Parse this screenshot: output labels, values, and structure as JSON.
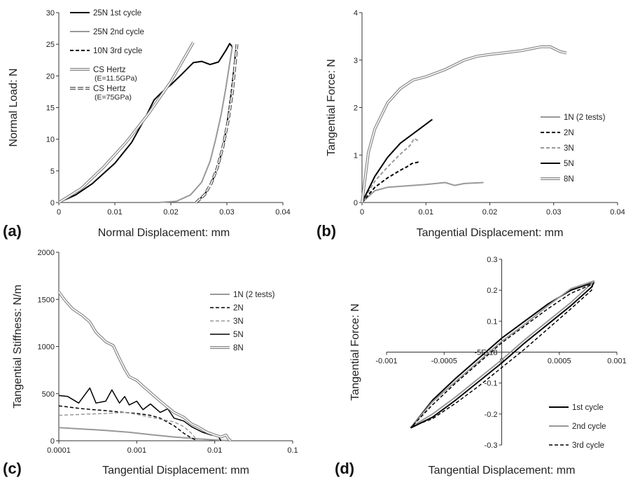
{
  "panels": [
    {
      "label": "(a)"
    },
    {
      "label": "(b)"
    },
    {
      "label": "(c)"
    },
    {
      "label": "(d)"
    }
  ],
  "chart_data": [
    {
      "type": "line",
      "xlabel": "Normal Displacement: mm",
      "ylabel": "Normal Load: N",
      "xlim": [
        0,
        0.04
      ],
      "ylim": [
        0,
        30
      ],
      "xticks": [
        "0",
        "0.01",
        "0.02",
        "0.03",
        "0.04"
      ],
      "yticks": [
        "0",
        "5",
        "10",
        "15",
        "20",
        "25",
        "30"
      ],
      "legend_position": "top-left",
      "series": [
        {
          "name": "25N 1st cycle",
          "color": "#000000",
          "width": 2,
          "style": "solid",
          "x": [
            0,
            0.003,
            0.006,
            0.01,
            0.013,
            0.0155,
            0.017,
            0.0185,
            0.02,
            0.022,
            0.024,
            0.0255,
            0.027,
            0.0285,
            0.0298,
            0.0305,
            0.0308,
            0.031
          ],
          "y": [
            0,
            1.2,
            3,
            6.2,
            9.5,
            13.5,
            16.2,
            17.5,
            18.6,
            20.3,
            22.1,
            22.3,
            21.8,
            22.2,
            24,
            25.1,
            24.8,
            24.4
          ]
        },
        {
          "name": "25N 2nd cycle",
          "color": "#999999",
          "width": 2,
          "style": "solid",
          "x": [
            0.0178,
            0.021,
            0.0235,
            0.0255,
            0.027,
            0.028,
            0.029,
            0.0298,
            0.0305,
            0.031
          ],
          "y": [
            0,
            0.2,
            1.2,
            3.2,
            6.5,
            10,
            14,
            18,
            22,
            24.8
          ]
        },
        {
          "name": "10N 3rd cycle",
          "color": "#000000",
          "width": 2,
          "style": "dash",
          "x": [
            0.0246,
            0.0262,
            0.0275,
            0.0285,
            0.0295,
            0.0302,
            0.0308,
            0.0313,
            0.0317
          ],
          "y": [
            0,
            1.5,
            3.6,
            6,
            9.5,
            13.5,
            17.5,
            21.5,
            25
          ]
        },
        {
          "name": "CS Hertz",
          "subname": "(E=11.5GPa)",
          "color": "#888888",
          "width": 4,
          "style": "hollow",
          "x": [
            0,
            0.004,
            0.008,
            0.012,
            0.016,
            0.02,
            0.024
          ],
          "y": [
            0,
            2.2,
            5.6,
            9.5,
            14,
            19.1,
            25.3
          ]
        },
        {
          "name": "CS Hertz",
          "subname": "(E=75GPa)",
          "color": "#555555",
          "width": 4,
          "style": "hollow-dash",
          "x": [
            0.0245,
            0.026,
            0.0272,
            0.0283,
            0.0293,
            0.0302,
            0.031,
            0.0318
          ],
          "y": [
            0,
            1.2,
            3,
            5.5,
            8.8,
            12.8,
            17.5,
            25
          ]
        }
      ]
    },
    {
      "type": "line",
      "xlabel": "Tangential Displacement: mm",
      "ylabel": "Tangential Force: N",
      "xlim": [
        0,
        0.04
      ],
      "ylim": [
        0,
        4
      ],
      "xticks": [
        "0",
        "0.01",
        "0.02",
        "0.03",
        "0.04"
      ],
      "yticks": [
        "0",
        "1",
        "2",
        "3",
        "4"
      ],
      "legend_position": "right",
      "series": [
        {
          "name": "1N (2 tests)",
          "color": "#999999",
          "width": 2,
          "style": "solid",
          "x": [
            0,
            0.002,
            0.004,
            0.007,
            0.01,
            0.013,
            0.0145,
            0.016,
            0.019
          ],
          "y": [
            0,
            0.25,
            0.32,
            0.35,
            0.38,
            0.42,
            0.36,
            0.4,
            0.42
          ]
        },
        {
          "name": "2N",
          "color": "#000000",
          "width": 2,
          "style": "dash",
          "x": [
            0,
            0.002,
            0.004,
            0.006,
            0.007,
            0.0078,
            0.0088,
            0.009
          ],
          "y": [
            0,
            0.32,
            0.52,
            0.68,
            0.75,
            0.82,
            0.85,
            0.84
          ]
        },
        {
          "name": "3N",
          "color": "#999999",
          "width": 2,
          "style": "dash",
          "x": [
            0,
            0.002,
            0.004,
            0.006,
            0.0075,
            0.0082,
            0.009
          ],
          "y": [
            0,
            0.45,
            0.75,
            1.02,
            1.2,
            1.35,
            1.28
          ]
        },
        {
          "name": "5N",
          "color": "#000000",
          "width": 2,
          "style": "solid",
          "x": [
            0,
            0.002,
            0.004,
            0.006,
            0.008,
            0.01,
            0.011
          ],
          "y": [
            0,
            0.55,
            0.95,
            1.25,
            1.45,
            1.65,
            1.75
          ]
        },
        {
          "name": "8N",
          "color": "#888888",
          "width": 4,
          "style": "hollow",
          "x": [
            0,
            0.001,
            0.002,
            0.004,
            0.006,
            0.008,
            0.01,
            0.013,
            0.016,
            0.018,
            0.02,
            0.022,
            0.025,
            0.028,
            0.0295,
            0.031,
            0.032
          ],
          "y": [
            0,
            1.05,
            1.55,
            2.1,
            2.4,
            2.58,
            2.65,
            2.8,
            3,
            3.08,
            3.12,
            3.15,
            3.2,
            3.28,
            3.28,
            3.18,
            3.15
          ]
        }
      ]
    },
    {
      "type": "line",
      "xlabel": "Tangential Displacement: mm",
      "ylabel": "Tangential Stiffness: N/m",
      "xscale": "log",
      "xlim": [
        0.0001,
        0.1
      ],
      "ylim": [
        0,
        2000
      ],
      "xticks": [
        "0.0001",
        "0.001",
        "0.01",
        "0.1"
      ],
      "yticks": [
        "0",
        "500",
        "1000",
        "1500",
        "2000"
      ],
      "legend_position": "top-right",
      "series": [
        {
          "name": "1N (2 tests)",
          "color": "#999999",
          "width": 2,
          "style": "solid",
          "x": [
            0.0001,
            0.0002,
            0.0004,
            0.0008,
            0.0015,
            0.003,
            0.006,
            0.01,
            0.015
          ],
          "y": [
            140,
            125,
            110,
            90,
            65,
            40,
            20,
            10,
            0
          ]
        },
        {
          "name": "2N",
          "color": "#000000",
          "width": 1.5,
          "style": "dash",
          "x": [
            0.0001,
            0.0002,
            0.0004,
            0.0007,
            0.001,
            0.0015,
            0.002,
            0.003,
            0.004,
            0.005,
            0.006
          ],
          "y": [
            370,
            340,
            320,
            300,
            290,
            270,
            240,
            160,
            80,
            30,
            0
          ]
        },
        {
          "name": "3N",
          "color": "#999999",
          "width": 1.5,
          "style": "dash",
          "x": [
            0.0001,
            0.0002,
            0.0004,
            0.0007,
            0.001,
            0.0015,
            0.002,
            0.003,
            0.004,
            0.005,
            0.006
          ],
          "y": [
            270,
            280,
            290,
            300,
            280,
            250,
            230,
            200,
            150,
            80,
            0
          ]
        },
        {
          "name": "5N",
          "color": "#000000",
          "width": 1.5,
          "style": "solid",
          "x": [
            0.0001,
            0.00013,
            0.00018,
            0.00025,
            0.0003,
            0.0004,
            0.00048,
            0.0006,
            0.0007,
            0.0008,
            0.001,
            0.0012,
            0.0015,
            0.002,
            0.0025,
            0.003,
            0.004,
            0.005,
            0.007,
            0.009,
            0.011,
            0.012
          ],
          "y": [
            480,
            470,
            400,
            560,
            400,
            420,
            540,
            400,
            470,
            380,
            420,
            330,
            390,
            300,
            340,
            240,
            210,
            150,
            90,
            60,
            50,
            0
          ]
        },
        {
          "name": "8N",
          "color": "#888888",
          "width": 4,
          "style": "hollow",
          "x": [
            0.0001,
            0.00012,
            0.00015,
            0.0002,
            0.00025,
            0.0003,
            0.0004,
            0.0005,
            0.0006,
            0.0007,
            0.0008,
            0.001,
            0.0012,
            0.0015,
            0.002,
            0.003,
            0.004,
            0.005,
            0.006,
            0.008,
            0.01,
            0.012,
            0.014,
            0.015,
            0.016
          ],
          "y": [
            1580,
            1490,
            1400,
            1330,
            1260,
            1150,
            1050,
            1010,
            870,
            760,
            680,
            640,
            580,
            510,
            420,
            300,
            250,
            180,
            150,
            90,
            60,
            40,
            60,
            20,
            0
          ]
        }
      ]
    },
    {
      "type": "line",
      "xlabel": "Tangential Displacement: mm",
      "ylabel": "Tangential Force: N",
      "xlim": [
        -0.001,
        0.001
      ],
      "ylim": [
        -0.3,
        0.3
      ],
      "xticks": [
        "-0.001",
        "-0.0005",
        "0",
        "0.0005",
        "0.001"
      ],
      "yticks": [
        "-0.3",
        "-0.2",
        "-0.1",
        "0",
        "0.1",
        "0.2",
        "0.3"
      ],
      "zero_y_label": "-5E-18",
      "legend_position": "bottom-right",
      "series": [
        {
          "name": "1st cycle",
          "color": "#000000",
          "width": 2,
          "style": "solid",
          "x": [
            -0.00079,
            -0.0006,
            -0.0004,
            -0.0002,
            0,
            0.0002,
            0.0004,
            0.0006,
            0.00078,
            0.0008,
            0.0006,
            0.0004,
            0.0002,
            0,
            -0.0002,
            -0.0004,
            -0.0006,
            -0.00079
          ],
          "y": [
            -0.245,
            -0.21,
            -0.155,
            -0.095,
            -0.035,
            0.03,
            0.09,
            0.15,
            0.21,
            0.225,
            0.2,
            0.155,
            0.1,
            0.045,
            -0.02,
            -0.085,
            -0.155,
            -0.245
          ]
        },
        {
          "name": "2nd cycle",
          "color": "#999999",
          "width": 2,
          "style": "solid",
          "x": [
            -0.00078,
            -0.0006,
            -0.0004,
            -0.0002,
            0,
            0.0002,
            0.0004,
            0.0006,
            0.00079,
            0.0008,
            0.0006,
            0.0004,
            0.0002,
            0,
            -0.0002,
            -0.0004,
            -0.0006,
            -0.00078
          ],
          "y": [
            -0.24,
            -0.2,
            -0.145,
            -0.085,
            -0.025,
            0.04,
            0.1,
            0.16,
            0.225,
            0.23,
            0.205,
            0.15,
            0.09,
            0.035,
            -0.03,
            -0.095,
            -0.16,
            -0.24
          ]
        },
        {
          "name": "3rd cycle",
          "color": "#000000",
          "width": 1.5,
          "style": "dash",
          "x": [
            -0.00078,
            -0.0006,
            -0.0004,
            -0.0002,
            0,
            0.0002,
            0.0004,
            0.0006,
            0.00078,
            0.00079,
            0.0006,
            0.0004,
            0.0002,
            0,
            -0.0002,
            -0.0004,
            -0.0006,
            -0.00078
          ],
          "y": [
            -0.24,
            -0.215,
            -0.165,
            -0.11,
            -0.05,
            0.01,
            0.075,
            0.14,
            0.2,
            0.22,
            0.19,
            0.14,
            0.085,
            0.03,
            -0.035,
            -0.1,
            -0.17,
            -0.24
          ]
        }
      ]
    }
  ]
}
